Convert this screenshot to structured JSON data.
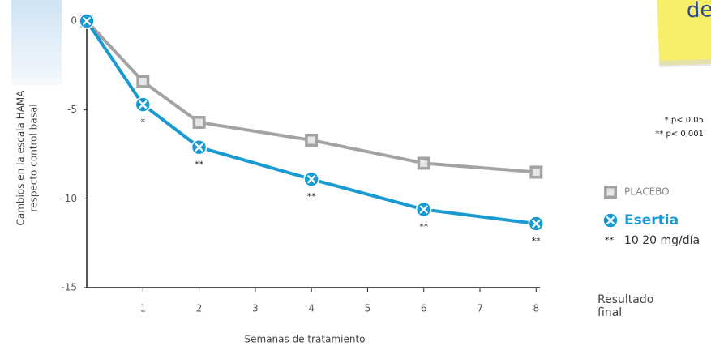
{
  "chart_data": {
    "type": "line",
    "note_text": "de",
    "ylabel": [
      "Cambios en la escala HAMA",
      "respecto control basal"
    ],
    "xlabel": "Semanas de tratamiento",
    "end_label": [
      "Resultado",
      "final"
    ],
    "xlim": [
      0,
      8
    ],
    "xticks": [
      1,
      2,
      3,
      4,
      5,
      6,
      7,
      8
    ],
    "ylim": [
      -15,
      0
    ],
    "yticks": [
      0,
      -5,
      -10,
      -15
    ],
    "x": [
      0,
      1,
      2,
      4,
      6,
      8
    ],
    "series": [
      {
        "name": "PLACEBO",
        "color": "#a3a3a3",
        "marker": "square",
        "values": [
          0,
          -3.4,
          -5.7,
          -6.7,
          -8.0,
          -8.5
        ]
      },
      {
        "name": "Esertia",
        "color": "#1a9ad2",
        "marker": "circle-x",
        "values": [
          0,
          -4.7,
          -7.1,
          -8.9,
          -10.6,
          -11.4
        ]
      }
    ],
    "annotations": [
      {
        "x": 1,
        "text": "*"
      },
      {
        "x": 2,
        "text": "**"
      },
      {
        "x": 4,
        "text": "**"
      },
      {
        "x": 6,
        "text": "**"
      },
      {
        "x": 8,
        "text": "**"
      }
    ],
    "legend_note": {
      "mark": "**",
      "text": "10 20 mg/día"
    },
    "footnotes": [
      "* p< 0,05",
      "** p< 0,001"
    ]
  }
}
